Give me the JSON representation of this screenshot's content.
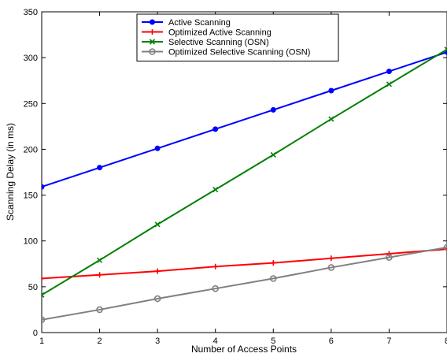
{
  "chart_data": {
    "type": "line",
    "title": "",
    "xlabel": "Number of Access Points",
    "ylabel": "Scanning Delay (in ms)",
    "x": [
      1,
      2,
      3,
      4,
      5,
      6,
      7,
      8
    ],
    "xlim": [
      1,
      8
    ],
    "ylim": [
      0,
      350
    ],
    "xticks": [
      "1",
      "2",
      "3",
      "4",
      "5",
      "6",
      "7",
      "8"
    ],
    "yticks": [
      "0",
      "50",
      "100",
      "150",
      "200",
      "250",
      "300",
      "350"
    ],
    "grid": false,
    "legend_position": "top-center",
    "series": [
      {
        "name": "Active Scanning",
        "color": "#0000ff",
        "marker": "dot",
        "values": [
          159,
          180,
          201,
          222,
          243,
          264,
          285,
          306
        ]
      },
      {
        "name": "Optimized Active Scanning",
        "color": "#ff0000",
        "marker": "plus",
        "values": [
          59,
          63,
          67,
          72,
          76,
          81,
          86,
          91
        ]
      },
      {
        "name": "Selective Scanning (OSN)",
        "color": "#008000",
        "marker": "x",
        "values": [
          41,
          79,
          118,
          156,
          194,
          233,
          271,
          309
        ]
      },
      {
        "name": "Optimized Selective Scanning (OSN)",
        "color": "#808080",
        "marker": "circle",
        "values": [
          14,
          25,
          37,
          48,
          59,
          71,
          82,
          93
        ]
      }
    ]
  }
}
